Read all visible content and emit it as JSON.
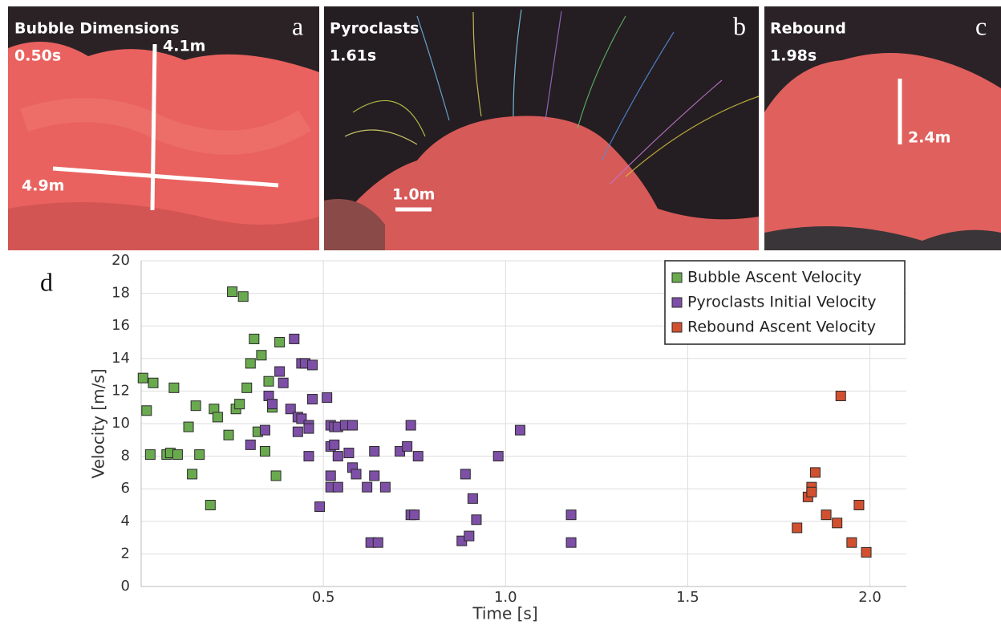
{
  "panels": [
    {
      "letter": "a",
      "title": "Bubble Dimensions",
      "time": "0.50s",
      "measurements": [
        "4.1m",
        "4.9m"
      ]
    },
    {
      "letter": "b",
      "title": "Pyroclasts",
      "time": "1.61s",
      "measurements": [
        "1.0m"
      ]
    },
    {
      "letter": "c",
      "title": "Rebound",
      "time": "1.98s",
      "measurements": [
        "2.4m"
      ]
    }
  ],
  "chart_data": {
    "type": "scatter",
    "panel_letter": "d",
    "x_label": "Time [s]",
    "y_label": "Velocity [m/s]",
    "xlim": [
      0,
      2.1
    ],
    "ylim": [
      0,
      20
    ],
    "xticks": [
      0.5,
      {
        "value": 1,
        "label": "1.0"
      },
      1.5,
      {
        "value": 2,
        "label": "2.0"
      }
    ],
    "yticks": [
      0,
      2,
      4,
      6,
      8,
      10,
      12,
      14,
      16,
      18,
      20
    ],
    "grid": true,
    "legend": "upper right",
    "series": [
      {
        "name": "Bubble Ascent Velocity",
        "color": "#6aaa4f",
        "x": [
          0.005,
          0.015,
          0.025,
          0.033,
          0.07,
          0.08,
          0.09,
          0.1,
          0.13,
          0.14,
          0.15,
          0.16,
          0.19,
          0.2,
          0.21,
          0.24,
          0.25,
          0.26,
          0.27,
          0.28,
          0.29,
          0.3,
          0.31,
          0.32,
          0.33,
          0.34,
          0.35,
          0.36,
          0.37,
          0.38
        ],
        "values": [
          12.8,
          10.8,
          8.1,
          12.5,
          8.1,
          8.2,
          12.2,
          8.1,
          9.8,
          6.9,
          11.1,
          8.1,
          5.0,
          10.9,
          10.4,
          9.3,
          18.1,
          10.9,
          11.2,
          17.8,
          12.2,
          13.7,
          15.2,
          9.5,
          14.2,
          8.3,
          12.6,
          11.0,
          6.8,
          15.0
        ]
      },
      {
        "name": "Pyroclasts Initial Velocity",
        "color": "#7d4fa6",
        "x": [
          0.3,
          0.34,
          0.35,
          0.36,
          0.38,
          0.39,
          0.41,
          0.42,
          0.43,
          0.44,
          0.44,
          0.43,
          0.45,
          0.46,
          0.46,
          0.46,
          0.47,
          0.47,
          0.49,
          0.51,
          0.52,
          0.53,
          0.52,
          0.53,
          0.52,
          0.52,
          0.54,
          0.54,
          0.54,
          0.56,
          0.57,
          0.58,
          0.58,
          0.59,
          0.62,
          0.63,
          0.64,
          0.64,
          0.65,
          0.67,
          0.71,
          0.73,
          0.74,
          0.74,
          0.75,
          0.76,
          0.88,
          0.89,
          0.9,
          0.91,
          0.92,
          0.98,
          1.04,
          1.18,
          1.18
        ],
        "values": [
          8.7,
          9.6,
          11.7,
          11.2,
          13.2,
          12.5,
          10.9,
          15.2,
          10.4,
          10.3,
          13.7,
          9.5,
          13.7,
          9.9,
          9.7,
          8.0,
          11.5,
          13.6,
          4.9,
          11.6,
          9.9,
          9.8,
          8.6,
          8.7,
          6.8,
          6.1,
          9.8,
          8.0,
          6.1,
          9.9,
          8.2,
          9.9,
          7.3,
          6.9,
          6.1,
          2.7,
          6.8,
          8.3,
          2.7,
          6.1,
          8.3,
          8.6,
          4.4,
          9.9,
          4.4,
          8.0,
          2.8,
          6.9,
          3.1,
          5.4,
          4.1,
          8.0,
          9.6,
          4.4,
          2.7
        ]
      },
      {
        "name": "Rebound Ascent Velocity",
        "color": "#d2502f",
        "x": [
          1.8,
          1.83,
          1.84,
          1.84,
          1.85,
          1.88,
          1.91,
          1.92,
          1.95,
          1.97,
          1.99
        ],
        "values": [
          3.6,
          5.5,
          6.1,
          5.8,
          7.0,
          4.4,
          3.9,
          11.7,
          2.7,
          5.0,
          2.1
        ]
      }
    ]
  }
}
